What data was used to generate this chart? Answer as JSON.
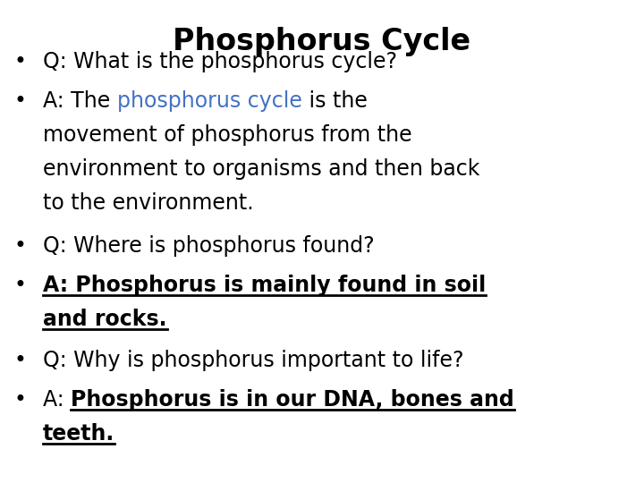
{
  "title": "Phosphorus Cycle",
  "title_fontsize": 24,
  "background_color": "#ffffff",
  "text_color": "#000000",
  "blue_color": "#4472C4",
  "body_fontsize": 17,
  "bullet": "•",
  "fig_width": 7.2,
  "fig_height": 5.4,
  "dpi": 100
}
